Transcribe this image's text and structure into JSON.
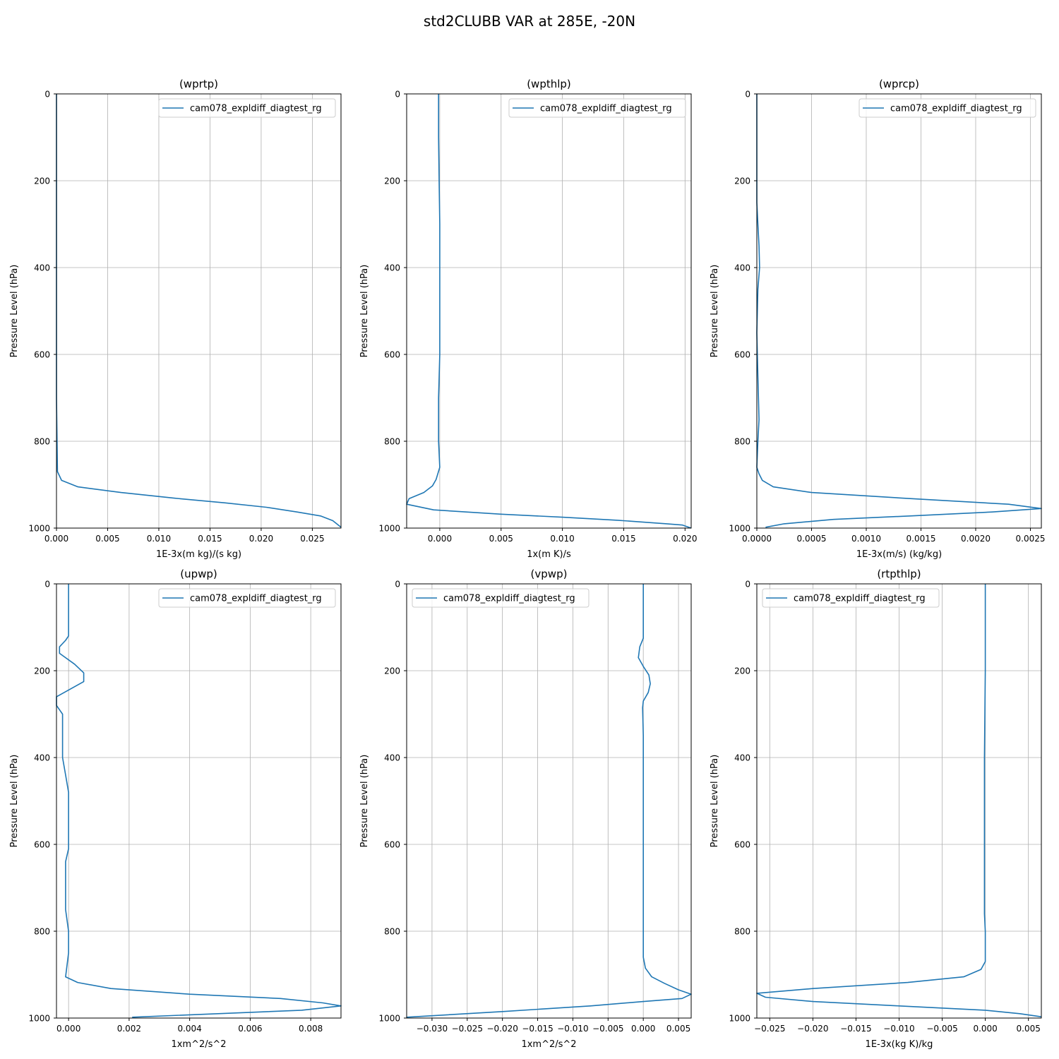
{
  "figure": {
    "title": "std2CLUBB VAR at 285E, -20N"
  },
  "colors": {
    "series": "#1f77b4",
    "grid": "#b0b0b0",
    "axes": "#000000",
    "legend_border": "#cccccc"
  },
  "chart_data": [
    {
      "type": "line",
      "title": "(wprtp)",
      "xlabel": "1E-3x(m kg)/(s kg)",
      "ylabel": "Pressure Level (hPa)",
      "xlim": [
        0,
        0.0278
      ],
      "ylim": [
        1000,
        0
      ],
      "xticks": [
        0.0,
        0.005,
        0.01,
        0.015,
        0.02,
        0.025
      ],
      "xtick_labels": [
        "0.000",
        "0.005",
        "0.010",
        "0.015",
        "0.020",
        "0.025"
      ],
      "yticks": [
        0,
        200,
        400,
        600,
        800,
        1000
      ],
      "ytick_labels": [
        "0",
        "200",
        "400",
        "600",
        "800",
        "1000"
      ],
      "grid": true,
      "legend_position": "top-right",
      "series": [
        {
          "name": "cam078_expldiff_diagtest_rg",
          "x": [
            0,
            0,
            0,
            0,
            0.0001,
            0.0005,
            0.0021,
            0.0063,
            0.0115,
            0.0165,
            0.0205,
            0.0235,
            0.0258,
            0.027,
            0.0278
          ],
          "y": [
            0,
            200,
            500,
            700,
            870,
            890,
            905,
            918,
            931,
            942,
            952,
            963,
            972,
            983,
            998
          ]
        }
      ]
    },
    {
      "type": "line",
      "title": "(wpthlp)",
      "xlabel": "1x(m K)/s",
      "ylabel": "Pressure Level (hPa)",
      "xlim": [
        -0.0027,
        0.0205
      ],
      "ylim": [
        1000,
        0
      ],
      "xticks": [
        0.0,
        0.005,
        0.01,
        0.015,
        0.02
      ],
      "xtick_labels": [
        "0.000",
        "0.005",
        "0.010",
        "0.015",
        "0.020"
      ],
      "yticks": [
        0,
        200,
        400,
        600,
        800,
        1000
      ],
      "ytick_labels": [
        "0",
        "200",
        "400",
        "600",
        "800",
        "1000"
      ],
      "grid": true,
      "legend_position": "top-right",
      "series": [
        {
          "name": "cam078_expldiff_diagtest_rg",
          "x": [
            -0.0001,
            -0.0001,
            -5e-05,
            0.0,
            0.0,
            0.0,
            -0.0001,
            -0.0001,
            0.0,
            -0.0003,
            -0.0006,
            -0.0013,
            -0.0025,
            -0.0027,
            -0.0005,
            0.005,
            0.01,
            0.0145,
            0.0185,
            0.0198,
            0.0205
          ],
          "y": [
            0,
            100,
            200,
            300,
            450,
            600,
            700,
            800,
            860,
            888,
            903,
            918,
            932,
            945,
            958,
            968,
            975,
            982,
            990,
            993,
            1000
          ]
        }
      ]
    },
    {
      "type": "line",
      "title": "(wprcp)",
      "xlabel": "1E-3x(m/s) (kg/kg)",
      "ylabel": "Pressure Level (hPa)",
      "xlim": [
        0,
        0.0026
      ],
      "ylim": [
        1000,
        0
      ],
      "xticks": [
        0.0,
        0.0005,
        0.001,
        0.0015,
        0.002,
        0.0025
      ],
      "xtick_labels": [
        "0.0000",
        "0.0005",
        "0.0010",
        "0.0015",
        "0.0020",
        "0.0025"
      ],
      "yticks": [
        0,
        200,
        400,
        600,
        800,
        1000
      ],
      "ytick_labels": [
        "0",
        "200",
        "400",
        "600",
        "800",
        "1000"
      ],
      "grid": true,
      "legend_position": "top-right",
      "series": [
        {
          "name": "cam078_expldiff_diagtest_rg",
          "x": [
            0,
            0,
            1e-05,
            2e-05,
            2.5e-05,
            1e-05,
            0.0,
            1e-05,
            2e-05,
            1e-05,
            0.0,
            2e-05,
            5e-05,
            0.00015,
            0.0005,
            0.0014,
            0.0023,
            0.0026,
            0.00215,
            0.0014,
            0.0007,
            0.00025,
            8e-05
          ],
          "y": [
            0,
            250,
            300,
            350,
            400,
            450,
            550,
            650,
            750,
            800,
            860,
            875,
            890,
            905,
            918,
            932,
            945,
            955,
            963,
            972,
            980,
            990,
            998
          ]
        }
      ]
    },
    {
      "type": "line",
      "title": "(upwp)",
      "xlabel": "1xm^2/s^2",
      "ylabel": "Pressure Level (hPa)",
      "xlim": [
        -0.0004,
        0.009
      ],
      "ylim": [
        1000,
        0
      ],
      "xticks": [
        0.0,
        0.002,
        0.004,
        0.006,
        0.008
      ],
      "xtick_labels": [
        "0.000",
        "0.002",
        "0.004",
        "0.006",
        "0.008"
      ],
      "yticks": [
        0,
        200,
        400,
        600,
        800,
        1000
      ],
      "ytick_labels": [
        "0",
        "200",
        "400",
        "600",
        "800",
        "1000"
      ],
      "grid": true,
      "legend_position": "top-right",
      "series": [
        {
          "name": "cam078_expldiff_diagtest_rg",
          "x": [
            0.0,
            0.0,
            0.0,
            -0.0001,
            -0.0003,
            -0.0003,
            0.0002,
            0.0005,
            0.0005,
            -0.0004,
            -0.0004,
            -0.0002,
            -0.0002,
            -0.0002,
            -0.0002,
            -0.0001,
            0.0,
            0.0,
            0.0,
            -0.0001,
            -0.0001,
            -0.0001,
            0.0,
            0.0,
            -0.0001,
            0.0003,
            0.0014,
            0.004,
            0.007,
            0.0084,
            0.009,
            0.0077,
            0.0021
          ],
          "y": [
            0,
            60,
            120,
            130,
            145,
            160,
            185,
            205,
            225,
            260,
            280,
            300,
            320,
            350,
            400,
            440,
            480,
            540,
            610,
            640,
            700,
            750,
            800,
            850,
            905,
            918,
            932,
            945,
            955,
            965,
            972,
            982,
            998
          ]
        }
      ]
    },
    {
      "type": "line",
      "title": "(vpwp)",
      "xlabel": "1xm^2/s^2",
      "ylabel": "Pressure Level (hPa)",
      "xlim": [
        -0.0336,
        0.0068
      ],
      "ylim": [
        1000,
        0
      ],
      "xticks": [
        -0.03,
        -0.025,
        -0.02,
        -0.015,
        -0.01,
        -0.005,
        0.0,
        0.005
      ],
      "xtick_labels": [
        "−0.030",
        "−0.025",
        "−0.020",
        "−0.015",
        "−0.010",
        "−0.005",
        "0.000",
        "0.005"
      ],
      "yticks": [
        0,
        200,
        400,
        600,
        800,
        1000
      ],
      "ytick_labels": [
        "0",
        "200",
        "400",
        "600",
        "800",
        "1000"
      ],
      "grid": true,
      "legend_position": "top-left",
      "series": [
        {
          "name": "cam078_expldiff_diagtest_rg",
          "x": [
            0.0,
            0.0,
            0.0,
            -0.0005,
            -0.0007,
            0.0,
            0.0008,
            0.001,
            0.0007,
            0.0,
            -0.0001,
            0.0,
            0.0,
            0.0,
            0.0,
            0.0,
            0.0003,
            0.0012,
            0.003,
            0.005,
            0.0068,
            0.0055,
            0.0,
            -0.0075,
            -0.02,
            -0.0336
          ],
          "y": [
            0,
            60,
            125,
            145,
            170,
            190,
            210,
            230,
            250,
            270,
            285,
            350,
            420,
            500,
            700,
            860,
            885,
            905,
            920,
            935,
            945,
            955,
            962,
            972,
            985,
            998
          ]
        }
      ]
    },
    {
      "type": "line",
      "title": "(rtpthlp)",
      "xlabel": "1E-3x(kg K)/kg",
      "ylabel": "Pressure Level (hPa)",
      "xlim": [
        -0.0265,
        0.0065
      ],
      "ylim": [
        1000,
        0
      ],
      "xticks": [
        -0.025,
        -0.02,
        -0.015,
        -0.01,
        -0.005,
        0.0,
        0.005
      ],
      "xtick_labels": [
        "−0.025",
        "−0.020",
        "−0.015",
        "−0.010",
        "−0.005",
        "0.000",
        "0.005"
      ],
      "yticks": [
        0,
        200,
        400,
        600,
        800,
        1000
      ],
      "ytick_labels": [
        "0",
        "200",
        "400",
        "600",
        "800",
        "1000"
      ],
      "grid": true,
      "legend_position": "top-left",
      "series": [
        {
          "name": "cam078_expldiff_diagtest_rg",
          "x": [
            0.0,
            0.0,
            -0.0001,
            -0.0001,
            -0.0001,
            0.0,
            0.0,
            -0.0005,
            -0.0025,
            -0.009,
            -0.02,
            -0.0265,
            -0.0255,
            -0.02,
            -0.01,
            0.0,
            0.004,
            0.0065
          ],
          "y": [
            0,
            200,
            400,
            600,
            760,
            800,
            870,
            888,
            905,
            918,
            932,
            943,
            952,
            962,
            972,
            982,
            990,
            997
          ]
        }
      ]
    }
  ]
}
